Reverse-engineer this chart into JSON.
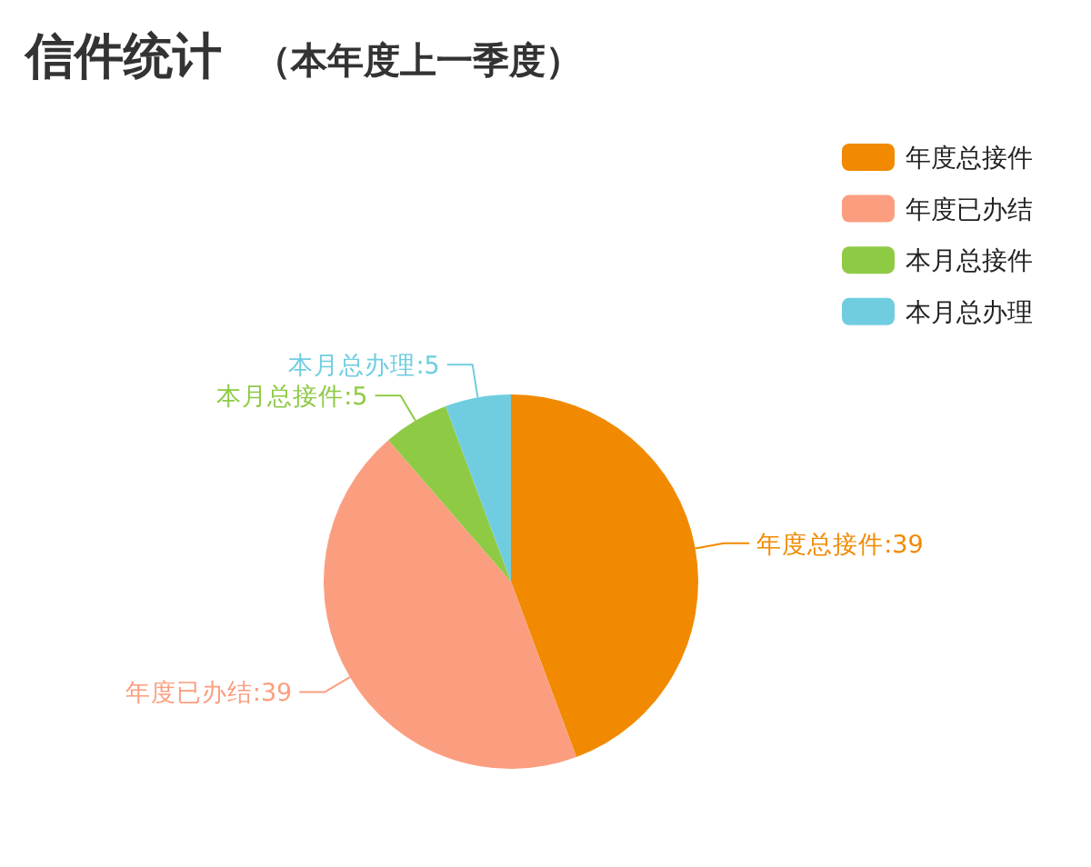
{
  "chart_data": {
    "type": "pie",
    "title": "信件统计",
    "subtitle": "（本年度上一季度）",
    "categories": [
      "年度总接件",
      "年度已办结",
      "本月总接件",
      "本月总办理"
    ],
    "values": [
      39,
      39,
      5,
      5
    ],
    "value_labels": [
      "年度总接件:39",
      "年度已办结:39",
      "本月总接件:5",
      "本月总办理:5"
    ],
    "colors": [
      "#f18a00",
      "#fb9e80",
      "#8fca45",
      "#70cde0"
    ],
    "legend": "top right"
  }
}
